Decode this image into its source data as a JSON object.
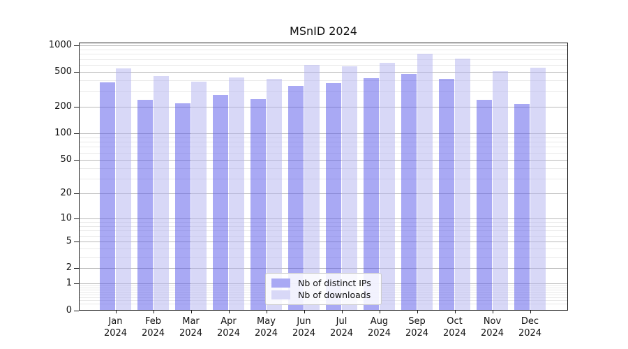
{
  "title": "MSnID 2024",
  "legend": {
    "position": "lower center",
    "items": [
      {
        "label": "Nb of distinct IPs",
        "swatch_color": "#a9a9f4"
      },
      {
        "label": "Nb of downloads",
        "swatch_color": "#d8d8f7"
      }
    ]
  },
  "chart_data": {
    "type": "bar",
    "title": "MSnID 2024",
    "categories": [
      "Jan 2024",
      "Feb 2024",
      "Mar 2024",
      "Apr 2024",
      "May 2024",
      "Jun 2024",
      "Jul 2024",
      "Aug 2024",
      "Sep 2024",
      "Oct 2024",
      "Nov 2024",
      "Dec 2024"
    ],
    "series": [
      {
        "name": "Nb of distinct IPs",
        "color": "#a9a9f4",
        "fill": "rgba(83,83,233,0.5)",
        "values": [
          380,
          240,
          220,
          275,
          245,
          350,
          375,
          425,
          470,
          420,
          240,
          215
        ]
      },
      {
        "name": "Nb of downloads",
        "color": "#d8d8f7",
        "fill": "rgba(177,177,239,0.5)",
        "values": [
          550,
          450,
          390,
          435,
          420,
          600,
          580,
          630,
          805,
          705,
          510,
          560
        ]
      }
    ],
    "xlabel": "",
    "ylabel": "",
    "yscale": "log1p",
    "ylim": [
      0,
      1075
    ],
    "y_ticks": [
      0,
      1,
      2,
      5,
      10,
      20,
      50,
      100,
      200,
      500,
      1000
    ],
    "y_minor_ticks": [
      0.2,
      0.3,
      0.4,
      0.5,
      0.6,
      0.7,
      0.8,
      0.9,
      3,
      4,
      6,
      7,
      8,
      9,
      30,
      40,
      60,
      70,
      80,
      90,
      300,
      400,
      600,
      700,
      800,
      900
    ],
    "grid": true,
    "grid_major_color": "#b9b9b9",
    "grid_minor_color": "#e9e9e9",
    "axis_color": "#1a1a1a",
    "legend_position": "lower center"
  }
}
